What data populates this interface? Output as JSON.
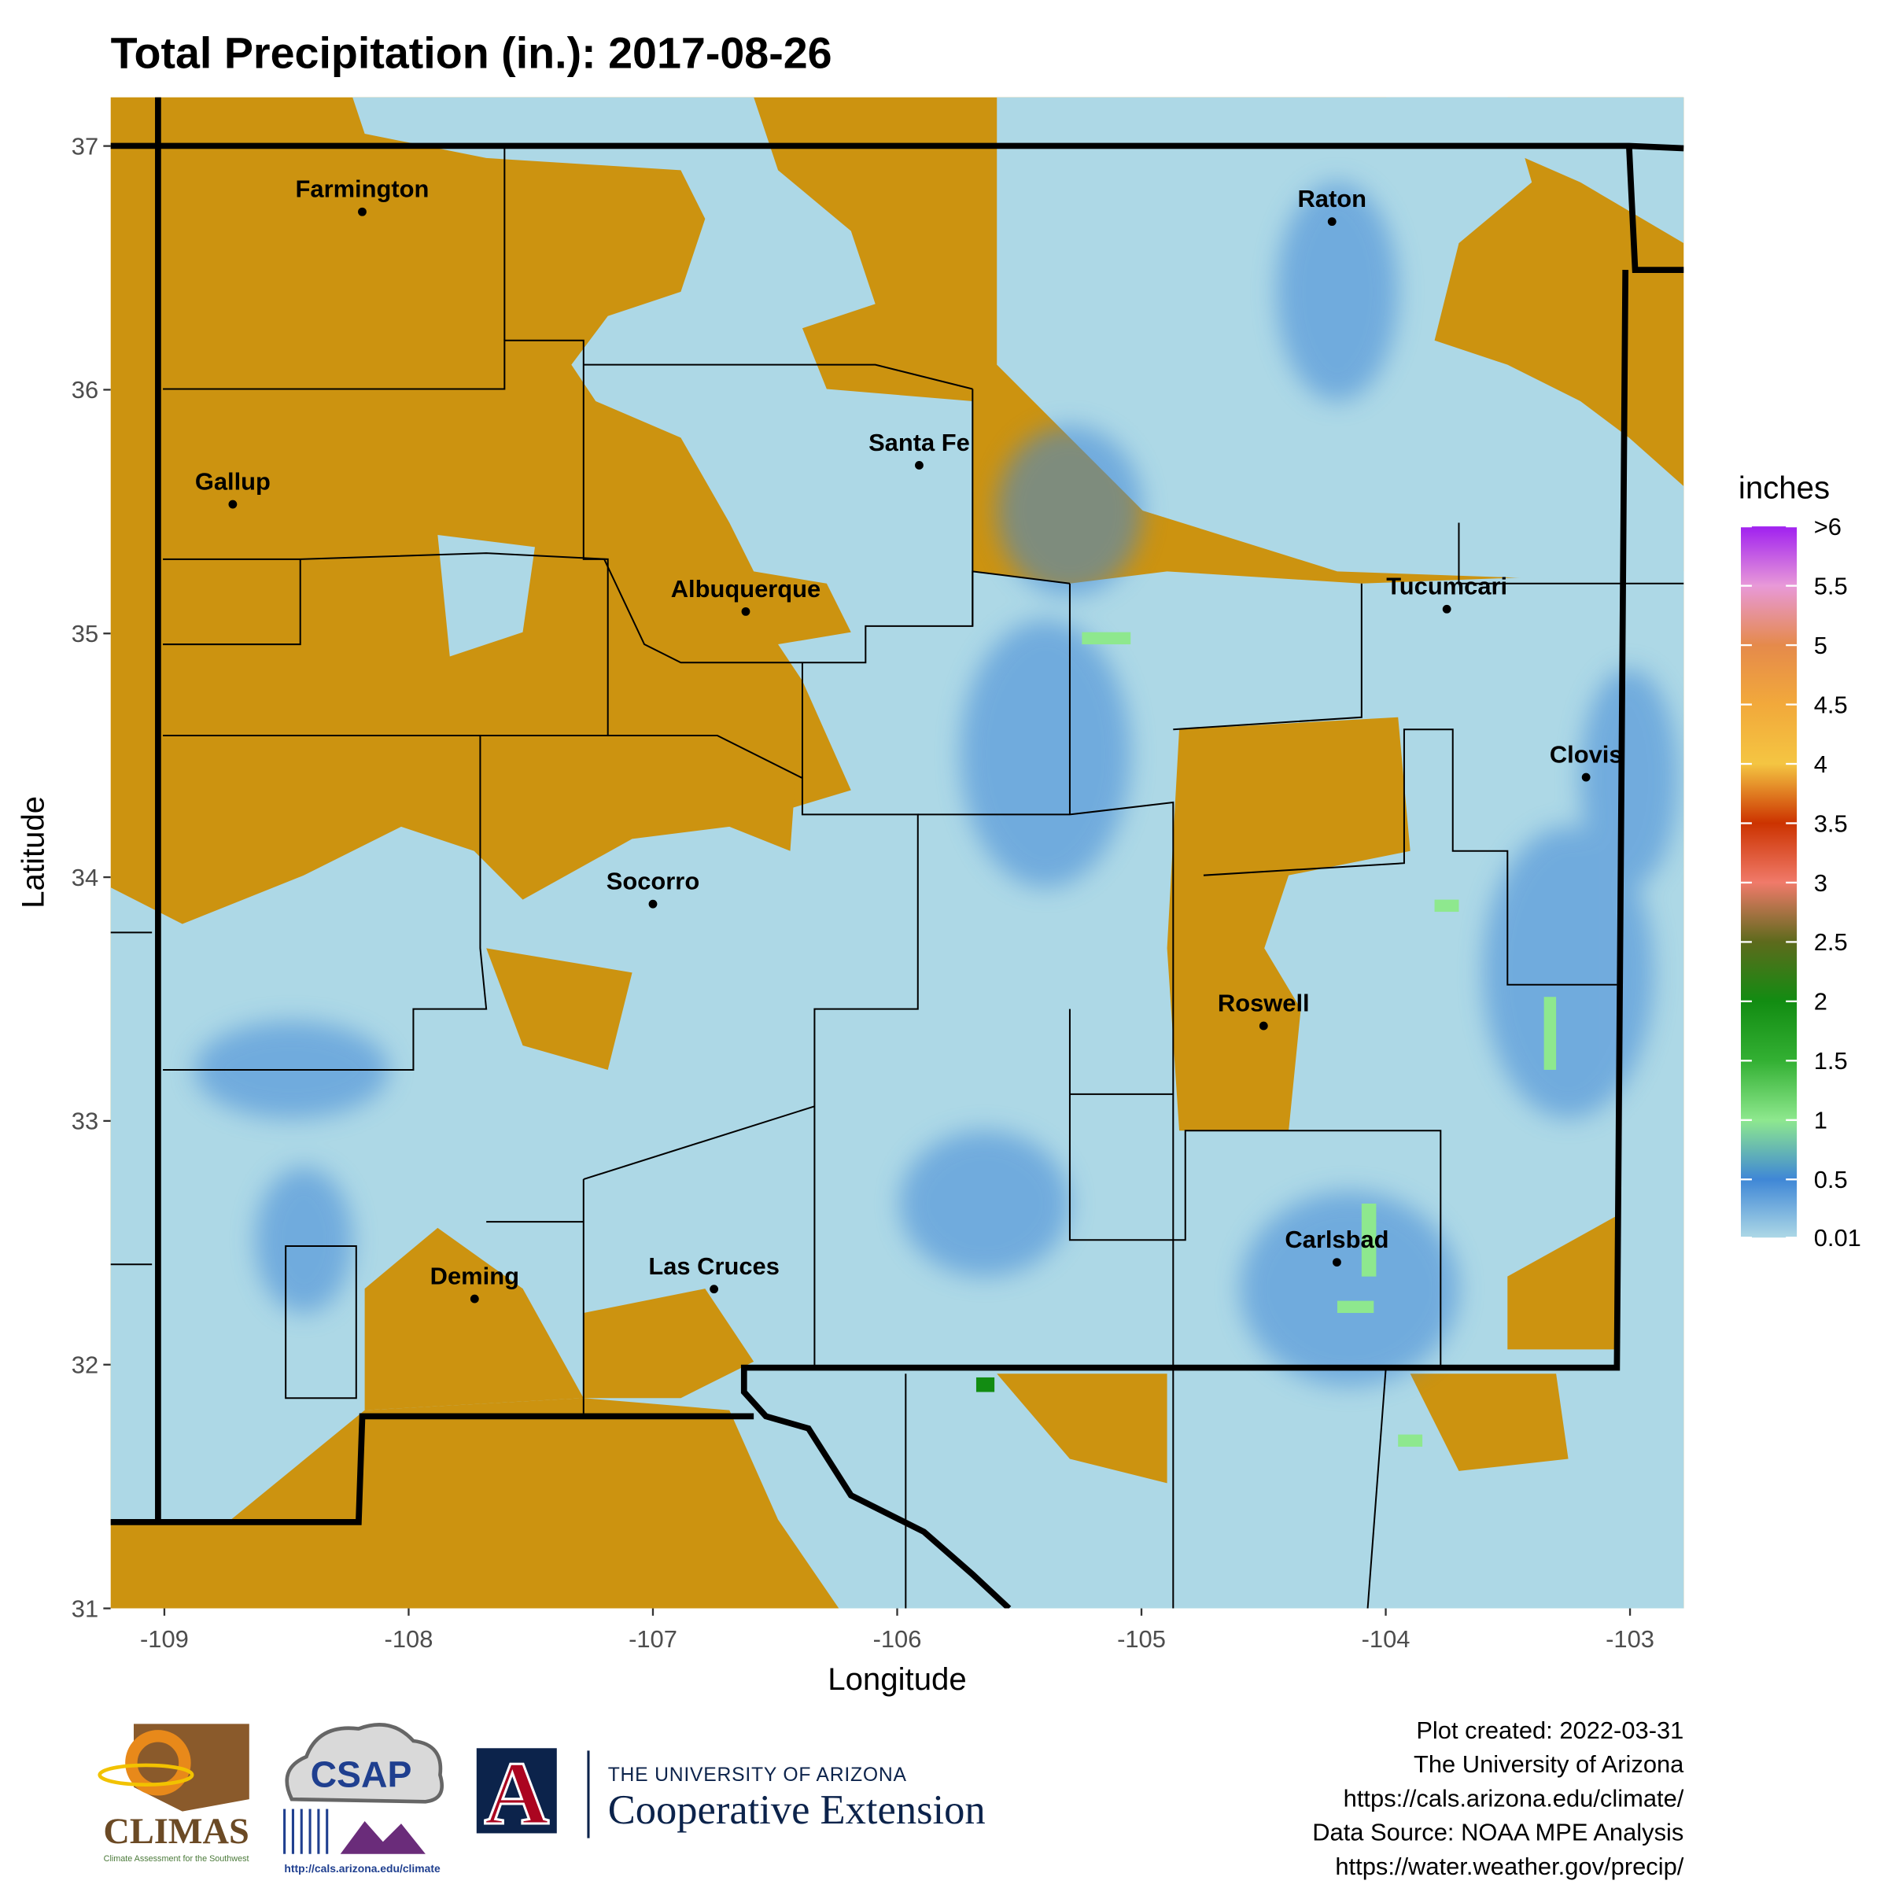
{
  "chart_data": {
    "type": "map",
    "title": "Total Precipitation (in.): 2017-08-26",
    "x_label": "Longitude",
    "y_label": "Latitude",
    "xlim": [
      -109.22,
      -102.78
    ],
    "ylim": [
      31,
      37.2
    ],
    "xticks": [
      -109,
      -108,
      -107,
      -106,
      -105,
      -104,
      -103
    ],
    "yticks": [
      31,
      32,
      33,
      34,
      35,
      36,
      37
    ],
    "no_data_color": "#cc9310",
    "cities": [
      {
        "name": "Farmington",
        "lon": -108.19,
        "lat": 36.73
      },
      {
        "name": "Gallup",
        "lon": -108.72,
        "lat": 35.53
      },
      {
        "name": "Santa Fe",
        "lon": -105.91,
        "lat": 35.69
      },
      {
        "name": "Albuquerque",
        "lon": -106.62,
        "lat": 35.09
      },
      {
        "name": "Raton",
        "lon": -104.22,
        "lat": 36.69
      },
      {
        "name": "Tucumcari",
        "lon": -103.75,
        "lat": 35.1
      },
      {
        "name": "Clovis",
        "lon": -103.18,
        "lat": 34.41
      },
      {
        "name": "Socorro",
        "lon": -107.0,
        "lat": 33.89
      },
      {
        "name": "Roswell",
        "lon": -104.5,
        "lat": 33.39
      },
      {
        "name": "Carlsbad",
        "lon": -104.2,
        "lat": 32.42
      },
      {
        "name": "Deming",
        "lon": -107.73,
        "lat": 32.27
      },
      {
        "name": "Las Cruces",
        "lon": -106.75,
        "lat": 32.31
      }
    ],
    "legend": {
      "title": "inches",
      "lim": [
        0.01,
        6
      ],
      "ticks": [
        0.01,
        0.5,
        1,
        1.5,
        2,
        2.5,
        3,
        3.5,
        4,
        4.5,
        5,
        5.5,
        {
          "value": 6,
          "label": ">6"
        }
      ],
      "colors": [
        "#add8e6",
        "#3f87d6",
        "#8ee88e",
        "#33b033",
        "#128c12",
        "#5d6a1c",
        "#f07a6a",
        "#cc3300",
        "#f4c542",
        "#f2a93b",
        "#e58a4b",
        "#e899d8",
        "#a020f0"
      ]
    }
  },
  "footer": {
    "lines": [
      "Plot created: 2022-03-31",
      "The University of Arizona",
      "https://cals.arizona.edu/climate/",
      "Data Source: NOAA MPE Analysis",
      "https://water.weather.gov/precip/"
    ]
  },
  "logos": {
    "climas": "CLIMAS",
    "climas_sub": "Climate Assessment for the Southwest",
    "csap": "CSAP",
    "csap_url": "http://cals.arizona.edu/climate",
    "ua_letter": "A",
    "ua_top": "THE UNIVERSITY OF ARIZONA",
    "ua_name": "Cooperative Extension"
  }
}
